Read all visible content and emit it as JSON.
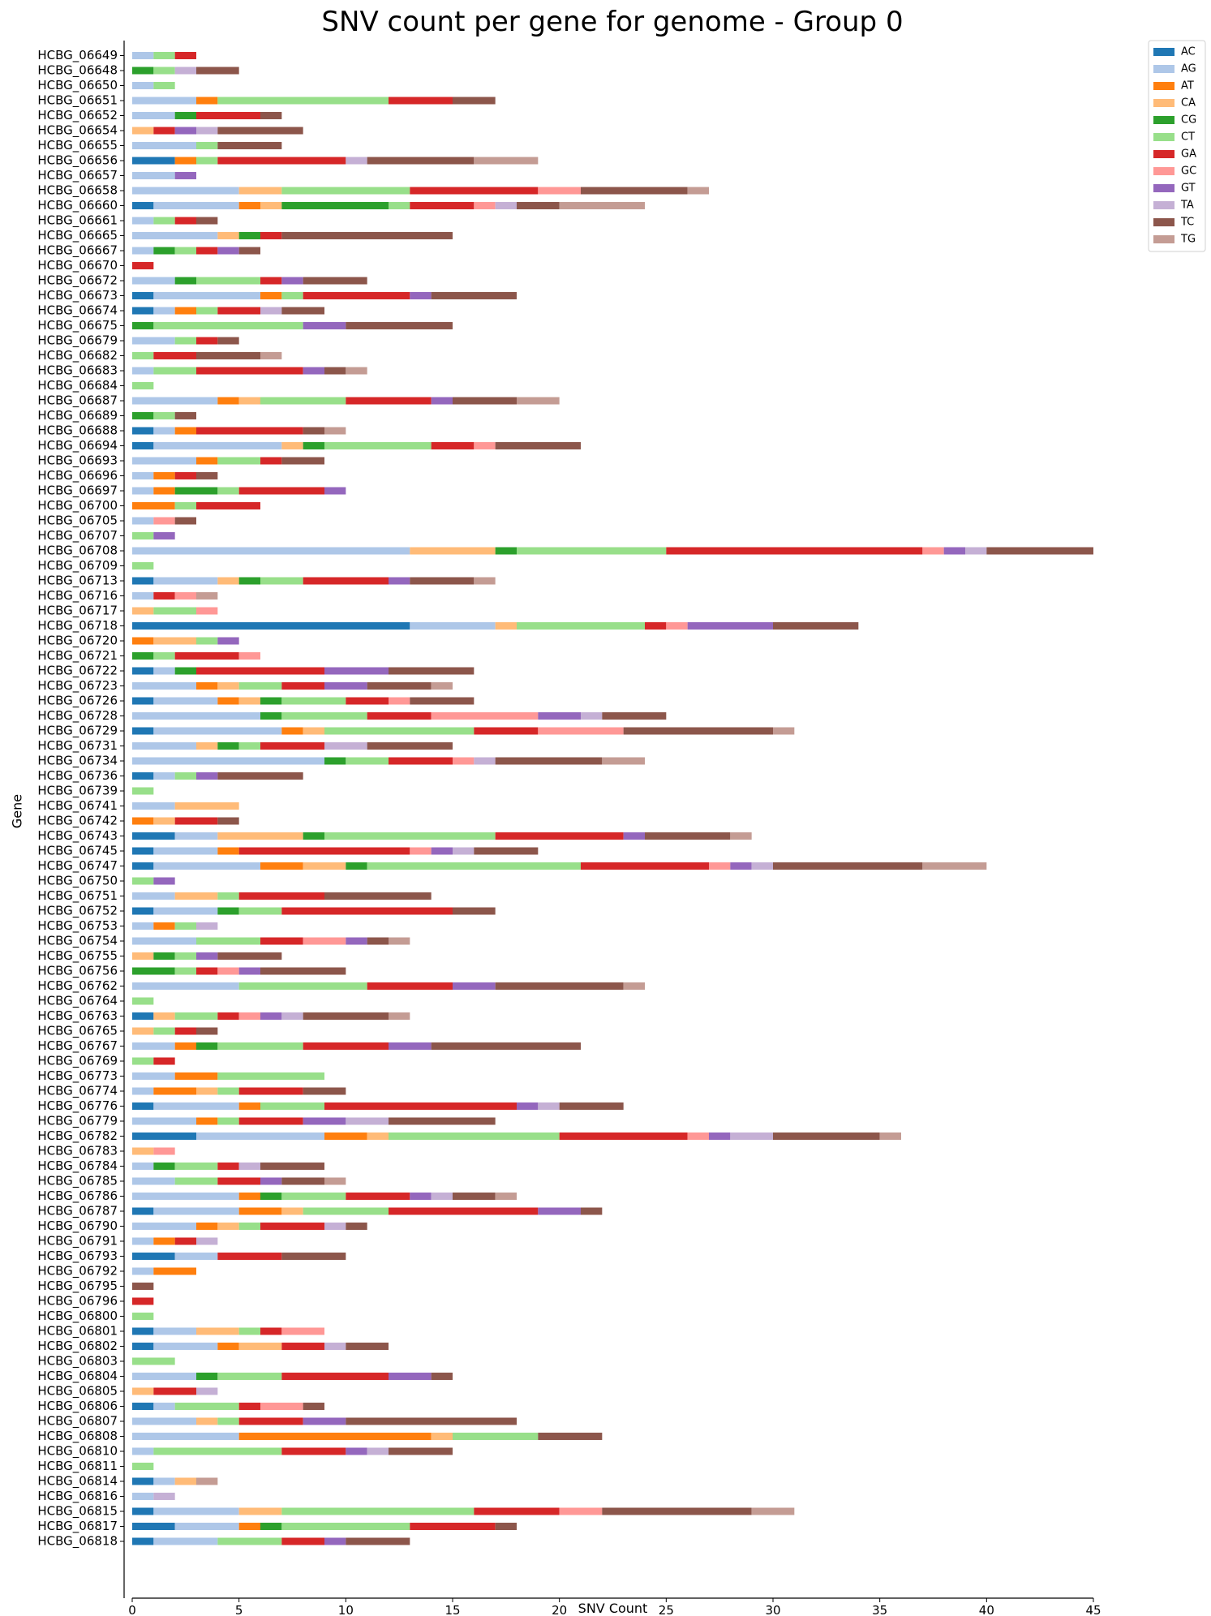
{
  "chart_data": {
    "type": "bar",
    "orientation": "horizontal",
    "stacked": true,
    "title": "SNV count per gene for genome - Group 0",
    "xlabel": "SNV Count",
    "ylabel": "Gene",
    "xlim": [
      0,
      45
    ],
    "xticks": [
      0,
      5,
      10,
      15,
      20,
      25,
      30,
      35,
      40,
      45
    ],
    "grid": false,
    "legend_position": "top-right outside",
    "categories": [
      "HCBG_06649",
      "HCBG_06648",
      "HCBG_06650",
      "HCBG_06651",
      "HCBG_06652",
      "HCBG_06654",
      "HCBG_06655",
      "HCBG_06656",
      "HCBG_06657",
      "HCBG_06658",
      "HCBG_06660",
      "HCBG_06661",
      "HCBG_06665",
      "HCBG_06667",
      "HCBG_06670",
      "HCBG_06672",
      "HCBG_06673",
      "HCBG_06674",
      "HCBG_06675",
      "HCBG_06679",
      "HCBG_06682",
      "HCBG_06683",
      "HCBG_06684",
      "HCBG_06687",
      "HCBG_06689",
      "HCBG_06688",
      "HCBG_06694",
      "HCBG_06693",
      "HCBG_06696",
      "HCBG_06697",
      "HCBG_06700",
      "HCBG_06705",
      "HCBG_06707",
      "HCBG_06708",
      "HCBG_06709",
      "HCBG_06713",
      "HCBG_06716",
      "HCBG_06717",
      "HCBG_06718",
      "HCBG_06720",
      "HCBG_06721",
      "HCBG_06722",
      "HCBG_06723",
      "HCBG_06726",
      "HCBG_06728",
      "HCBG_06729",
      "HCBG_06731",
      "HCBG_06734",
      "HCBG_06736",
      "HCBG_06739",
      "HCBG_06741",
      "HCBG_06742",
      "HCBG_06743",
      "HCBG_06745",
      "HCBG_06747",
      "HCBG_06750",
      "HCBG_06751",
      "HCBG_06752",
      "HCBG_06753",
      "HCBG_06754",
      "HCBG_06755",
      "HCBG_06756",
      "HCBG_06762",
      "HCBG_06764",
      "HCBG_06763",
      "HCBG_06765",
      "HCBG_06767",
      "HCBG_06769",
      "HCBG_06773",
      "HCBG_06774",
      "HCBG_06776",
      "HCBG_06779",
      "HCBG_06782",
      "HCBG_06783",
      "HCBG_06784",
      "HCBG_06785",
      "HCBG_06786",
      "HCBG_06787",
      "HCBG_06790",
      "HCBG_06791",
      "HCBG_06793",
      "HCBG_06792",
      "HCBG_06795",
      "HCBG_06796",
      "HCBG_06800",
      "HCBG_06801",
      "HCBG_06802",
      "HCBG_06803",
      "HCBG_06804",
      "HCBG_06805",
      "HCBG_06806",
      "HCBG_06807",
      "HCBG_06808",
      "HCBG_06810",
      "HCBG_06811",
      "HCBG_06814",
      "HCBG_06816",
      "HCBG_06815",
      "HCBG_06817",
      "HCBG_06818"
    ],
    "series": [
      {
        "name": "AC",
        "color": "#1f77b4",
        "values": [
          0,
          0,
          0,
          0,
          0,
          0,
          0,
          2,
          0,
          0,
          1,
          0,
          0,
          0,
          0,
          0,
          1,
          1,
          0,
          0,
          0,
          0,
          0,
          0,
          0,
          1,
          1,
          0,
          0,
          0,
          0,
          0,
          0,
          0,
          0,
          1,
          0,
          0,
          13,
          0,
          0,
          1,
          0,
          1,
          0,
          1,
          0,
          0,
          1,
          0,
          0,
          0,
          2,
          1,
          1,
          0,
          0,
          1,
          0,
          0,
          0,
          0,
          0,
          0,
          1,
          0,
          0,
          0,
          0,
          0,
          1,
          0,
          3,
          0,
          0,
          0,
          0,
          1,
          0,
          0,
          2,
          0,
          0,
          0,
          0,
          1,
          1,
          0,
          0,
          0,
          1,
          0,
          0,
          0,
          0,
          1,
          0,
          1,
          2,
          1
        ]
      },
      {
        "name": "AG",
        "color": "#aec7e8",
        "values": [
          1,
          0,
          1,
          3,
          2,
          0,
          3,
          0,
          2,
          5,
          4,
          1,
          4,
          1,
          0,
          2,
          5,
          1,
          0,
          2,
          0,
          1,
          0,
          4,
          0,
          1,
          6,
          3,
          1,
          1,
          0,
          1,
          0,
          13,
          0,
          3,
          1,
          0,
          4,
          0,
          0,
          1,
          3,
          3,
          6,
          6,
          3,
          9,
          1,
          0,
          2,
          0,
          2,
          3,
          5,
          0,
          2,
          3,
          1,
          3,
          0,
          0,
          5,
          0,
          0,
          0,
          2,
          0,
          2,
          1,
          4,
          3,
          6,
          0,
          1,
          2,
          5,
          4,
          3,
          1,
          2,
          1,
          0,
          0,
          0,
          2,
          3,
          0,
          3,
          0,
          1,
          3,
          5,
          1,
          0,
          1,
          1,
          4,
          3,
          3
        ]
      },
      {
        "name": "AT",
        "color": "#ff7f0e",
        "values": [
          0,
          0,
          0,
          1,
          0,
          0,
          0,
          1,
          0,
          0,
          1,
          0,
          0,
          0,
          0,
          0,
          1,
          1,
          0,
          0,
          0,
          0,
          0,
          1,
          0,
          1,
          0,
          1,
          1,
          1,
          2,
          0,
          0,
          0,
          0,
          0,
          0,
          0,
          0,
          1,
          0,
          0,
          1,
          1,
          0,
          1,
          0,
          0,
          0,
          0,
          0,
          1,
          0,
          1,
          2,
          0,
          0,
          0,
          1,
          0,
          0,
          0,
          0,
          0,
          0,
          0,
          1,
          0,
          2,
          2,
          1,
          1,
          2,
          0,
          0,
          0,
          1,
          2,
          1,
          1,
          0,
          2,
          0,
          0,
          0,
          0,
          1,
          0,
          0,
          0,
          0,
          0,
          9,
          0,
          0,
          0,
          0,
          0,
          1,
          0
        ]
      },
      {
        "name": "CA",
        "color": "#ffbb78",
        "values": [
          0,
          0,
          0,
          0,
          0,
          1,
          0,
          0,
          0,
          2,
          1,
          0,
          1,
          0,
          0,
          0,
          0,
          0,
          0,
          0,
          0,
          0,
          0,
          1,
          0,
          0,
          1,
          0,
          0,
          0,
          0,
          0,
          0,
          4,
          0,
          1,
          0,
          1,
          1,
          2,
          0,
          0,
          1,
          1,
          0,
          1,
          1,
          0,
          0,
          0,
          3,
          1,
          4,
          0,
          2,
          0,
          2,
          0,
          0,
          0,
          1,
          0,
          0,
          0,
          1,
          1,
          0,
          0,
          0,
          1,
          0,
          0,
          1,
          1,
          0,
          0,
          0,
          1,
          1,
          0,
          0,
          0,
          0,
          0,
          0,
          2,
          2,
          0,
          0,
          1,
          0,
          1,
          1,
          0,
          0,
          1,
          0,
          2,
          0,
          0
        ]
      },
      {
        "name": "CG",
        "color": "#2ca02c",
        "values": [
          0,
          1,
          0,
          0,
          1,
          0,
          0,
          0,
          0,
          0,
          5,
          0,
          1,
          1,
          0,
          1,
          0,
          0,
          1,
          0,
          0,
          0,
          0,
          0,
          1,
          0,
          1,
          0,
          0,
          2,
          0,
          0,
          0,
          1,
          0,
          1,
          0,
          0,
          0,
          0,
          1,
          1,
          0,
          1,
          1,
          0,
          1,
          1,
          0,
          0,
          0,
          0,
          1,
          0,
          1,
          0,
          0,
          1,
          0,
          0,
          1,
          2,
          0,
          0,
          0,
          0,
          1,
          0,
          0,
          0,
          0,
          0,
          0,
          0,
          1,
          0,
          1,
          0,
          0,
          0,
          0,
          0,
          0,
          0,
          0,
          0,
          0,
          0,
          1,
          0,
          0,
          0,
          0,
          0,
          0,
          0,
          0,
          0,
          1,
          0
        ]
      },
      {
        "name": "CT",
        "color": "#98df8a",
        "values": [
          1,
          1,
          1,
          8,
          0,
          0,
          1,
          1,
          0,
          6,
          1,
          1,
          0,
          1,
          0,
          3,
          1,
          1,
          7,
          1,
          1,
          2,
          1,
          4,
          1,
          0,
          5,
          2,
          0,
          1,
          1,
          0,
          1,
          7,
          1,
          2,
          0,
          2,
          6,
          1,
          1,
          0,
          2,
          3,
          4,
          7,
          1,
          2,
          1,
          1,
          0,
          0,
          8,
          0,
          10,
          1,
          1,
          2,
          1,
          3,
          1,
          1,
          6,
          1,
          2,
          1,
          4,
          1,
          5,
          1,
          3,
          1,
          8,
          0,
          2,
          2,
          3,
          4,
          1,
          0,
          0,
          0,
          0,
          0,
          1,
          1,
          0,
          2,
          3,
          0,
          3,
          1,
          4,
          6,
          1,
          0,
          0,
          9,
          6,
          3
        ]
      },
      {
        "name": "GA",
        "color": "#d62728",
        "values": [
          1,
          0,
          0,
          3,
          3,
          1,
          0,
          6,
          0,
          6,
          3,
          1,
          1,
          1,
          1,
          1,
          5,
          2,
          0,
          1,
          2,
          5,
          0,
          4,
          0,
          5,
          2,
          1,
          1,
          4,
          3,
          0,
          0,
          12,
          0,
          4,
          1,
          0,
          1,
          0,
          3,
          6,
          2,
          2,
          3,
          3,
          3,
          3,
          0,
          0,
          0,
          2,
          6,
          8,
          6,
          0,
          4,
          8,
          0,
          2,
          0,
          1,
          4,
          0,
          1,
          1,
          4,
          1,
          0,
          3,
          9,
          3,
          6,
          0,
          1,
          2,
          3,
          7,
          3,
          1,
          3,
          0,
          0,
          1,
          0,
          1,
          2,
          0,
          5,
          2,
          1,
          3,
          0,
          3,
          0,
          0,
          0,
          4,
          4,
          2
        ]
      },
      {
        "name": "GC",
        "color": "#ff9896",
        "values": [
          0,
          0,
          0,
          0,
          0,
          0,
          0,
          0,
          0,
          2,
          1,
          0,
          0,
          0,
          0,
          0,
          0,
          0,
          0,
          0,
          0,
          0,
          0,
          0,
          0,
          0,
          1,
          0,
          0,
          0,
          0,
          1,
          0,
          1,
          0,
          0,
          1,
          1,
          1,
          0,
          1,
          0,
          0,
          1,
          5,
          4,
          0,
          1,
          0,
          0,
          0,
          0,
          0,
          1,
          1,
          0,
          0,
          0,
          0,
          2,
          0,
          1,
          0,
          0,
          1,
          0,
          0,
          0,
          0,
          0,
          0,
          0,
          1,
          1,
          0,
          0,
          0,
          0,
          0,
          0,
          0,
          0,
          0,
          0,
          0,
          2,
          0,
          0,
          0,
          0,
          2,
          0,
          0,
          0,
          0,
          0,
          0,
          2,
          0,
          0
        ]
      },
      {
        "name": "GT",
        "color": "#9467bd",
        "values": [
          0,
          0,
          0,
          0,
          0,
          1,
          0,
          0,
          1,
          0,
          0,
          0,
          0,
          1,
          0,
          1,
          1,
          0,
          2,
          0,
          0,
          1,
          0,
          1,
          0,
          0,
          0,
          0,
          0,
          1,
          0,
          0,
          1,
          1,
          0,
          1,
          0,
          0,
          4,
          1,
          0,
          3,
          2,
          0,
          2,
          0,
          0,
          0,
          1,
          0,
          0,
          0,
          1,
          1,
          1,
          1,
          0,
          0,
          0,
          1,
          1,
          1,
          2,
          0,
          1,
          0,
          2,
          0,
          0,
          0,
          1,
          2,
          1,
          0,
          0,
          1,
          1,
          2,
          0,
          0,
          0,
          0,
          0,
          0,
          0,
          0,
          0,
          0,
          2,
          0,
          0,
          2,
          0,
          1,
          0,
          0,
          0,
          0,
          0,
          1
        ]
      },
      {
        "name": "TA",
        "color": "#c5b0d5",
        "values": [
          0,
          1,
          0,
          0,
          0,
          1,
          0,
          1,
          0,
          0,
          1,
          0,
          0,
          0,
          0,
          0,
          0,
          1,
          0,
          0,
          0,
          0,
          0,
          0,
          0,
          0,
          0,
          0,
          0,
          0,
          0,
          0,
          0,
          1,
          0,
          0,
          0,
          0,
          0,
          0,
          0,
          0,
          0,
          0,
          1,
          0,
          2,
          1,
          0,
          0,
          0,
          0,
          0,
          1,
          1,
          0,
          0,
          0,
          1,
          0,
          0,
          0,
          0,
          0,
          1,
          0,
          0,
          0,
          0,
          0,
          1,
          2,
          2,
          0,
          1,
          0,
          1,
          0,
          1,
          1,
          0,
          0,
          0,
          0,
          0,
          0,
          1,
          0,
          0,
          1,
          0,
          0,
          0,
          1,
          0,
          0,
          1,
          0,
          0,
          0
        ]
      },
      {
        "name": "TC",
        "color": "#8c564b",
        "values": [
          0,
          2,
          0,
          2,
          1,
          4,
          3,
          5,
          0,
          5,
          2,
          1,
          8,
          1,
          0,
          3,
          4,
          2,
          5,
          1,
          3,
          1,
          0,
          3,
          1,
          1,
          4,
          2,
          1,
          0,
          0,
          1,
          0,
          5,
          0,
          3,
          0,
          0,
          4,
          0,
          0,
          4,
          3,
          3,
          3,
          7,
          4,
          5,
          4,
          0,
          0,
          1,
          4,
          3,
          7,
          0,
          5,
          2,
          0,
          1,
          3,
          4,
          6,
          0,
          4,
          1,
          7,
          0,
          0,
          2,
          3,
          5,
          5,
          0,
          3,
          2,
          2,
          1,
          1,
          0,
          3,
          0,
          1,
          0,
          0,
          0,
          2,
          0,
          1,
          0,
          1,
          8,
          3,
          3,
          0,
          0,
          0,
          7,
          1,
          3
        ]
      },
      {
        "name": "TG",
        "color": "#c49c94",
        "values": [
          0,
          0,
          0,
          0,
          0,
          0,
          0,
          3,
          0,
          1,
          4,
          0,
          0,
          0,
          0,
          0,
          0,
          0,
          0,
          0,
          1,
          1,
          0,
          2,
          0,
          1,
          0,
          0,
          0,
          0,
          0,
          0,
          0,
          0,
          0,
          1,
          1,
          0,
          0,
          0,
          0,
          0,
          1,
          0,
          0,
          1,
          0,
          2,
          0,
          0,
          0,
          0,
          1,
          0,
          3,
          0,
          0,
          0,
          0,
          1,
          0,
          0,
          1,
          0,
          1,
          0,
          0,
          0,
          0,
          0,
          0,
          0,
          1,
          0,
          0,
          1,
          1,
          0,
          0,
          0,
          0,
          0,
          0,
          0,
          0,
          0,
          0,
          0,
          0,
          0,
          0,
          0,
          0,
          0,
          0,
          1,
          0,
          2,
          0,
          0
        ]
      }
    ]
  }
}
